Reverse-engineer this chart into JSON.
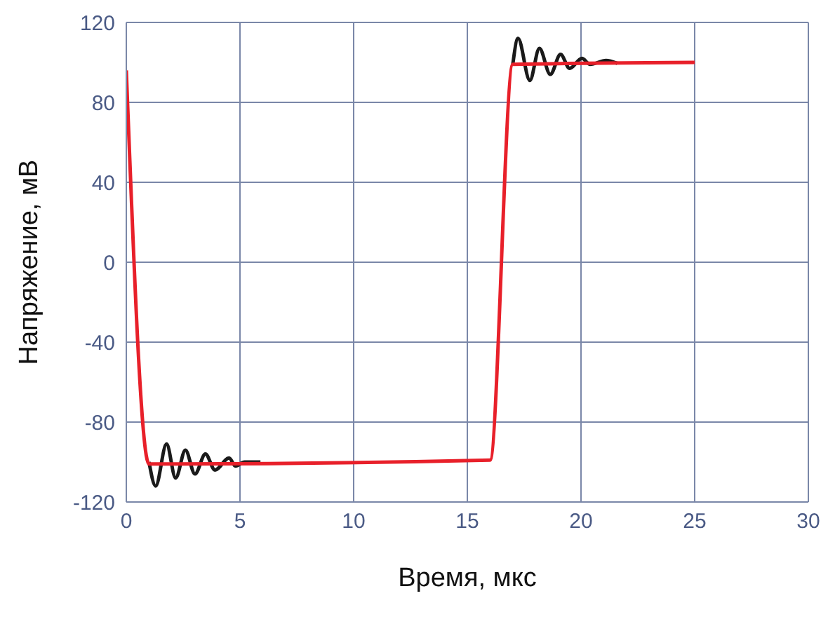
{
  "chart_data": {
    "type": "line",
    "xlabel": "Время, мкс",
    "ylabel": "Напряжение, мВ",
    "xlim": [
      0,
      30
    ],
    "xticks": [
      0,
      5,
      10,
      15,
      20,
      25,
      30
    ],
    "ylim": [
      -120,
      120
    ],
    "yticks": [
      -120,
      -80,
      -40,
      0,
      40,
      80,
      120
    ],
    "grid": true,
    "marker": "none",
    "line_style": "solid",
    "series": [
      {
        "color": "#1a1a1a",
        "x": [
          1.0,
          1.29,
          1.77,
          2.17,
          2.6,
          3.02,
          3.48,
          3.9,
          4.52,
          4.8,
          5.2,
          5.9,
          6.0,
          17.0,
          17.23,
          17.75,
          18.17,
          18.65,
          19.1,
          19.5,
          20.04,
          20.4,
          21.1,
          21.6
        ],
        "values": [
          -100,
          -112,
          -91,
          -108,
          -94,
          -106,
          -96,
          -104,
          -98,
          -102,
          -100,
          -100,
          null,
          99,
          112,
          91,
          107,
          94,
          104,
          97,
          102,
          99,
          101,
          99.5
        ]
      },
      {
        "color": "#e8202a",
        "x": [
          0,
          1.0,
          16,
          17,
          25
        ],
        "values": [
          96,
          -101,
          -99,
          99,
          100
        ]
      }
    ]
  }
}
